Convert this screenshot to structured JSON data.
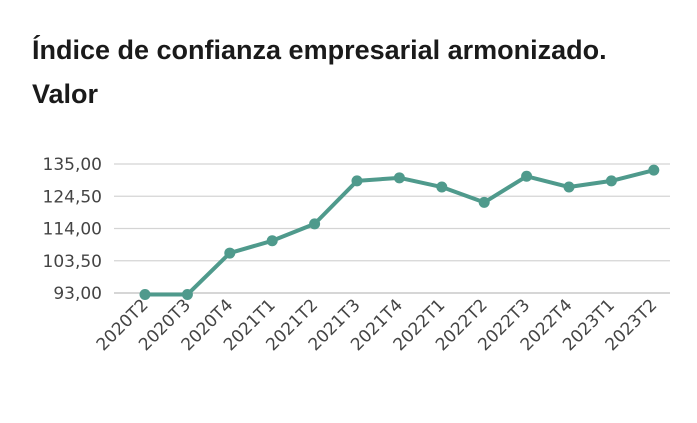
{
  "chart_data": {
    "type": "line",
    "title": "Índice de confianza empresarial armonizado. Valor",
    "xlabel": "",
    "ylabel": "",
    "categories": [
      "2020T2",
      "2020T3",
      "2020T4",
      "2021T1",
      "2021T2",
      "2021T3",
      "2021T4",
      "2022T1",
      "2022T2",
      "2022T3",
      "2022T4",
      "2023T1",
      "2023T2"
    ],
    "y_ticks": [
      "135,00",
      "124,50",
      "114,00",
      "103,50",
      "93,00"
    ],
    "y_tick_values": [
      135,
      124.5,
      114,
      103.5,
      93
    ],
    "ylim": [
      93,
      135
    ],
    "grid": "horizontal",
    "legend": "none",
    "series": [
      {
        "values": [
          92.5,
          92.5,
          106.0,
          110.0,
          115.5,
          129.5,
          130.5,
          127.5,
          122.5,
          131.0,
          127.5,
          129.5,
          133.0
        ],
        "color": "#4f9a8c"
      }
    ]
  }
}
